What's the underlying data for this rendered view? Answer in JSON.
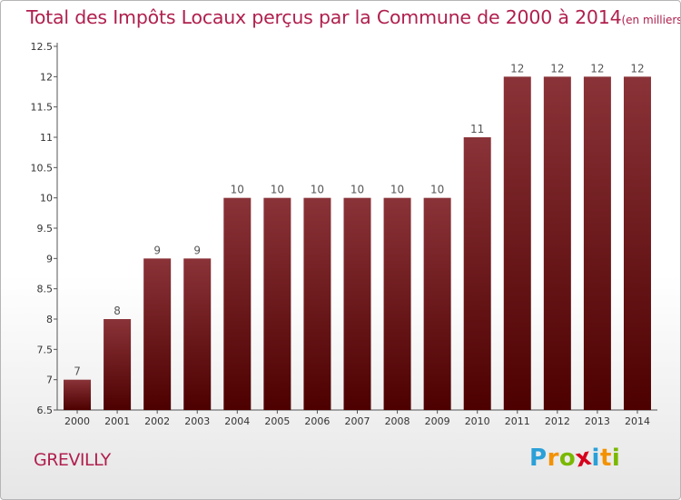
{
  "title": "Total des Impôts Locaux perçus par la Commune de 2000 à 2014",
  "title_unit": "(en milliers d'€)",
  "commune": "GREVILLY",
  "logo": {
    "letters": [
      "P",
      "r",
      "o",
      "x",
      "i",
      "t",
      "i"
    ],
    "colors": [
      "#2aa0d8",
      "#f39200",
      "#7ab800",
      "#d6001c",
      "#2aa0d8",
      "#f39200",
      "#7ab800"
    ]
  },
  "colors": {
    "bar_top": "#8a3338",
    "bar_bottom": "#4d0000",
    "title": "#b0204e"
  },
  "chart_data": {
    "type": "bar",
    "categories": [
      "2000",
      "2001",
      "2002",
      "2003",
      "2004",
      "2005",
      "2006",
      "2007",
      "2008",
      "2009",
      "2010",
      "2011",
      "2012",
      "2013",
      "2014"
    ],
    "values": [
      7,
      8,
      9,
      9,
      10,
      10,
      10,
      10,
      10,
      10,
      11,
      12,
      12,
      12,
      12
    ],
    "data_labels": [
      "7",
      "8",
      "9",
      "9",
      "10",
      "10",
      "10",
      "10",
      "10",
      "10",
      "11",
      "12",
      "12",
      "12",
      "12"
    ],
    "ylim": [
      6.5,
      12.5
    ],
    "yticks": [
      6.5,
      7,
      7.5,
      8,
      8.5,
      9,
      9.5,
      10,
      10.5,
      11,
      11.5,
      12,
      12.5
    ],
    "ytick_labels": [
      "6.5",
      "7",
      "7.5",
      "8",
      "8.5",
      "9",
      "9.5",
      "10",
      "10.5",
      "11",
      "11.5",
      "12",
      "12.5"
    ],
    "grid": false,
    "xlabel": "",
    "ylabel": ""
  }
}
